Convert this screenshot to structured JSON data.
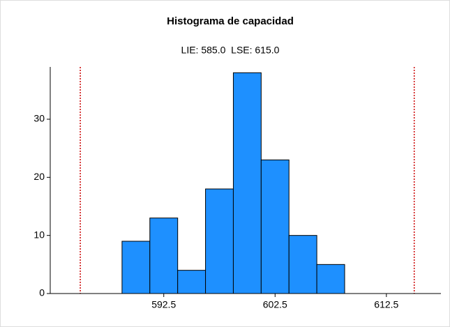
{
  "chart_data": {
    "type": "histogram",
    "title": "Histograma de capacidad",
    "subtitle": "LIE: 585.0  LSE: 615.0",
    "bins": [
      588.75,
      591.25,
      593.75,
      596.25,
      598.75,
      601.25,
      603.75,
      606.25,
      608.75
    ],
    "values": [
      9,
      13,
      4,
      18,
      38,
      23,
      10,
      5
    ],
    "color": "#1e90ff",
    "spec_limits": [
      585,
      615
    ],
    "spec_color": "#cc0000",
    "xlim": [
      582.3,
      617.4
    ],
    "xticks": [
      592.5,
      602.5,
      612.5
    ],
    "ylim": [
      0,
      39
    ],
    "yticks": [
      0,
      10,
      20,
      30
    ]
  }
}
